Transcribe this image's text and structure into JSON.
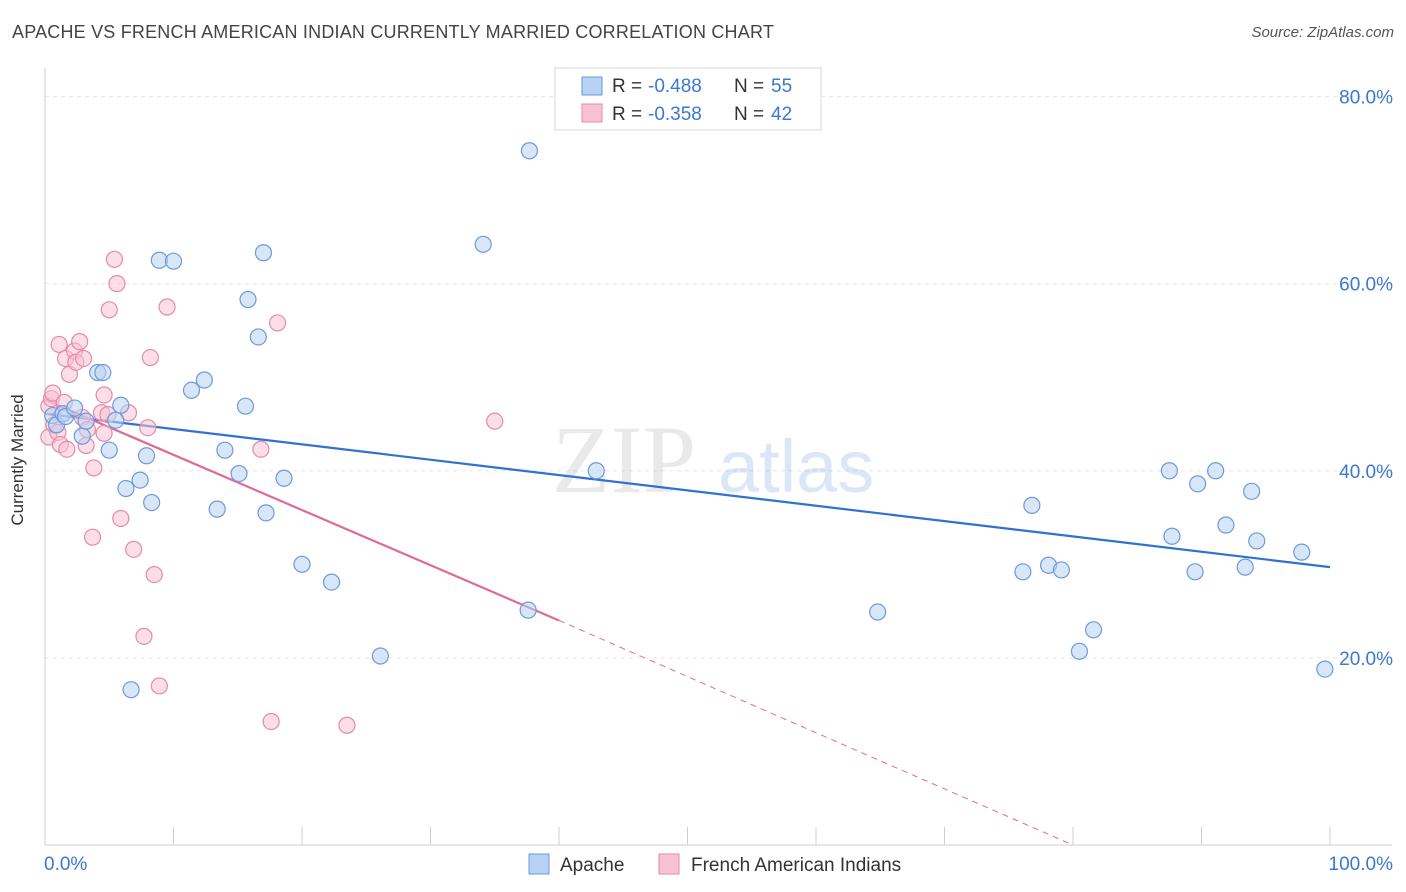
{
  "header": {
    "title": "APACHE VS FRENCH AMERICAN INDIAN CURRENTLY MARRIED CORRELATION CHART",
    "source": "Source: ZipAtlas.com"
  },
  "watermark": {
    "zip": "ZIP",
    "atlas": "atlas"
  },
  "legend_top": [
    {
      "r_label": "R =",
      "r_value": "-0.488",
      "n_label": "N =",
      "n_value": "55"
    },
    {
      "r_label": "R =",
      "r_value": "-0.358",
      "n_label": "N =",
      "n_value": "42"
    }
  ],
  "legend_bottom": [
    "Apache",
    "French American Indians"
  ],
  "colors": {
    "apache_fill": "#b9d2f3",
    "apache_stroke": "#6a9bdc",
    "apache_line": "#2f72cf",
    "french_fill": "#f7c2d3",
    "french_stroke": "#e58aa8",
    "french_line": "#e06a96",
    "value_text": "#3b78d0",
    "grid": "#e4e6ea"
  },
  "chart_data": {
    "type": "scatter",
    "title": "APACHE VS FRENCH AMERICAN INDIAN CURRENTLY MARRIED CORRELATION CHART",
    "xlabel": "",
    "ylabel": "Currently Married",
    "xlim": [
      0,
      100
    ],
    "ylim": [
      0,
      80
    ],
    "x_tick_labels": [
      "0.0%",
      "100.0%"
    ],
    "y_tick_labels": [
      "20.0%",
      "40.0%",
      "60.0%",
      "80.0%"
    ],
    "y_ticks": [
      20,
      40,
      60,
      80
    ],
    "grid": "horizontal dashed",
    "legend_placement": "top-center",
    "series": [
      {
        "name": "Apache",
        "r": -0.488,
        "n": 55,
        "trend": {
          "x": [
            0,
            100
          ],
          "y": [
            46.1,
            29.7
          ]
        },
        "points": [
          [
            0.6,
            45.9
          ],
          [
            0.9,
            44.9
          ],
          [
            1.4,
            46.1
          ],
          [
            1.6,
            45.8
          ],
          [
            2.3,
            46.7
          ],
          [
            2.9,
            43.7
          ],
          [
            3.2,
            45.3
          ],
          [
            4.1,
            50.5
          ],
          [
            4.5,
            50.5
          ],
          [
            5.0,
            42.2
          ],
          [
            5.5,
            45.4
          ],
          [
            5.9,
            47.0
          ],
          [
            6.3,
            38.1
          ],
          [
            7.4,
            39.0
          ],
          [
            7.9,
            41.6
          ],
          [
            8.3,
            36.6
          ],
          [
            6.7,
            16.6
          ],
          [
            8.9,
            62.5
          ],
          [
            10.0,
            62.4
          ],
          [
            11.4,
            48.6
          ],
          [
            12.4,
            49.7
          ],
          [
            13.4,
            35.9
          ],
          [
            14.0,
            42.2
          ],
          [
            15.1,
            39.7
          ],
          [
            15.6,
            46.9
          ],
          [
            15.8,
            58.3
          ],
          [
            16.6,
            54.3
          ],
          [
            17.0,
            63.3
          ],
          [
            17.2,
            35.5
          ],
          [
            18.6,
            39.2
          ],
          [
            20.0,
            30.0
          ],
          [
            22.3,
            28.1
          ],
          [
            26.1,
            20.2
          ],
          [
            34.1,
            64.2
          ],
          [
            37.7,
            74.2
          ],
          [
            37.6,
            25.1
          ],
          [
            42.9,
            40.0
          ],
          [
            64.8,
            24.9
          ],
          [
            76.8,
            36.3
          ],
          [
            76.1,
            29.2
          ],
          [
            78.1,
            29.9
          ],
          [
            79.1,
            29.4
          ],
          [
            80.5,
            20.7
          ],
          [
            81.6,
            23.0
          ],
          [
            87.5,
            40.0
          ],
          [
            87.7,
            33.0
          ],
          [
            89.5,
            29.2
          ],
          [
            89.7,
            38.6
          ],
          [
            91.1,
            40.0
          ],
          [
            91.9,
            34.2
          ],
          [
            93.4,
            29.7
          ],
          [
            93.9,
            37.8
          ],
          [
            94.3,
            32.5
          ],
          [
            97.8,
            31.3
          ],
          [
            99.6,
            18.8
          ]
        ]
      },
      {
        "name": "French American Indians",
        "r": -0.358,
        "n": 42,
        "trend": {
          "x": [
            0,
            40
          ],
          "y": [
            47.6,
            24.0
          ]
        },
        "trend_dashed": {
          "x": [
            40,
            80
          ],
          "y": [
            24.0,
            0.0
          ]
        },
        "points": [
          [
            0.3,
            46.9
          ],
          [
            0.3,
            43.6
          ],
          [
            0.5,
            47.7
          ],
          [
            0.6,
            48.3
          ],
          [
            0.7,
            44.9
          ],
          [
            1.0,
            44.1
          ],
          [
            1.1,
            53.5
          ],
          [
            1.2,
            42.8
          ],
          [
            1.5,
            47.3
          ],
          [
            1.6,
            52.0
          ],
          [
            1.7,
            42.3
          ],
          [
            1.9,
            50.3
          ],
          [
            2.3,
            52.8
          ],
          [
            2.4,
            51.6
          ],
          [
            2.7,
            53.8
          ],
          [
            2.9,
            45.7
          ],
          [
            3.0,
            52.0
          ],
          [
            3.2,
            42.7
          ],
          [
            3.3,
            44.4
          ],
          [
            3.8,
            40.3
          ],
          [
            3.7,
            32.9
          ],
          [
            4.4,
            46.2
          ],
          [
            4.6,
            44.0
          ],
          [
            4.6,
            48.1
          ],
          [
            4.9,
            46.0
          ],
          [
            5.0,
            57.2
          ],
          [
            5.4,
            62.6
          ],
          [
            5.6,
            60.0
          ],
          [
            5.9,
            34.9
          ],
          [
            6.5,
            46.2
          ],
          [
            6.9,
            31.6
          ],
          [
            7.7,
            22.3
          ],
          [
            8.0,
            44.6
          ],
          [
            8.2,
            52.1
          ],
          [
            8.5,
            28.9
          ],
          [
            8.9,
            17.0
          ],
          [
            9.5,
            57.5
          ],
          [
            16.8,
            42.3
          ],
          [
            17.6,
            13.2
          ],
          [
            18.1,
            55.8
          ],
          [
            23.5,
            12.8
          ],
          [
            35.0,
            45.3
          ]
        ]
      }
    ]
  }
}
